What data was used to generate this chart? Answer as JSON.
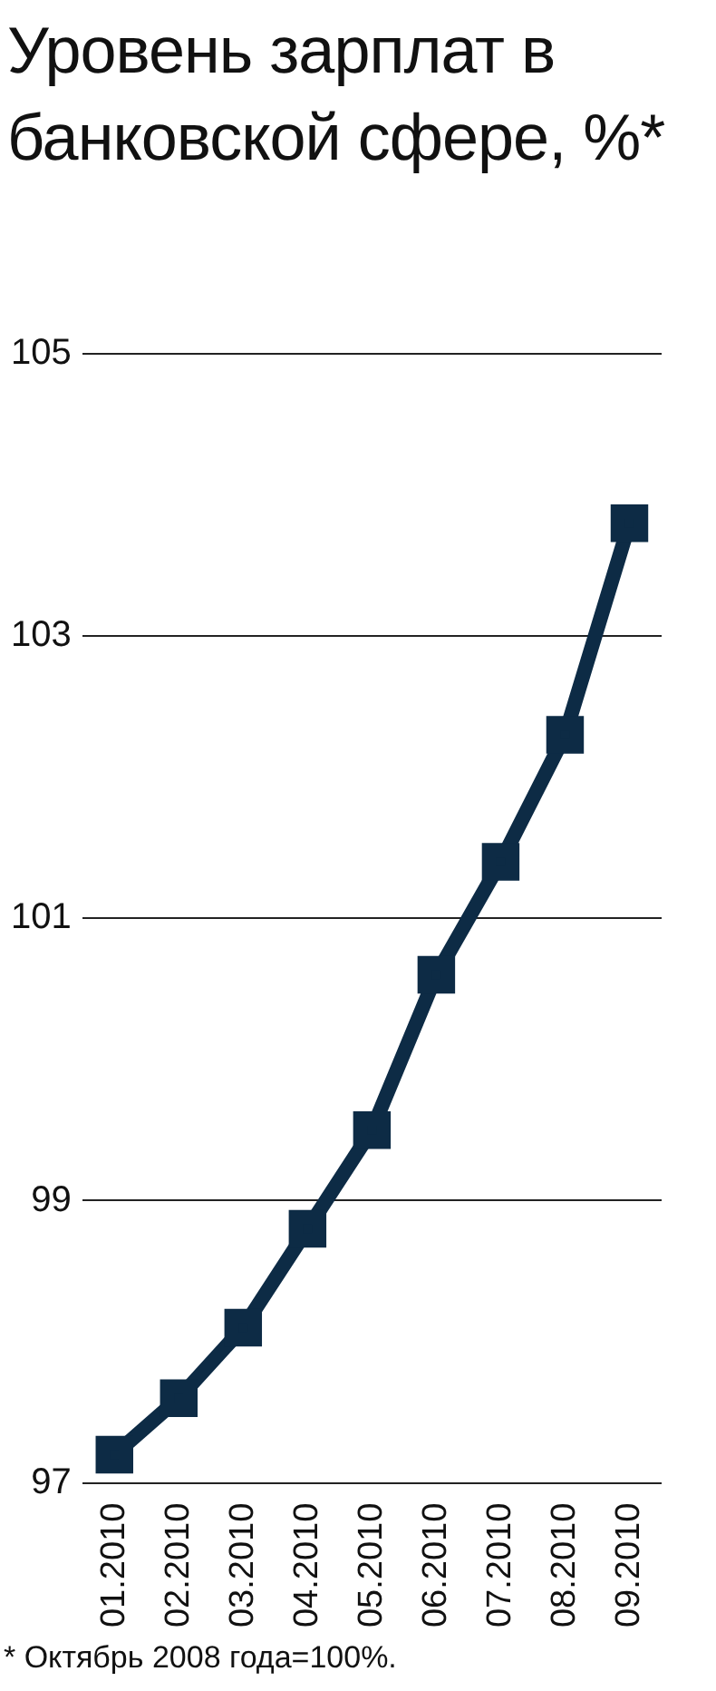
{
  "chart_data": {
    "type": "line",
    "title": "Уровень зарплат в банковской сфере, %*",
    "categories": [
      "01.2010",
      "02.2010",
      "03.2010",
      "04.2010",
      "05.2010",
      "06.2010",
      "07.2010",
      "08.2010",
      "09.2010"
    ],
    "values": [
      97.2,
      97.6,
      98.1,
      98.8,
      99.5,
      100.6,
      101.4,
      102.3,
      103.8
    ],
    "color": "#0d2b45",
    "marker": "square",
    "grid": "y",
    "ylim": [
      97,
      105
    ],
    "yticks": [
      97,
      99,
      101,
      103,
      105
    ],
    "annotations": [
      "* Октябрь 2008 года=100%."
    ]
  }
}
